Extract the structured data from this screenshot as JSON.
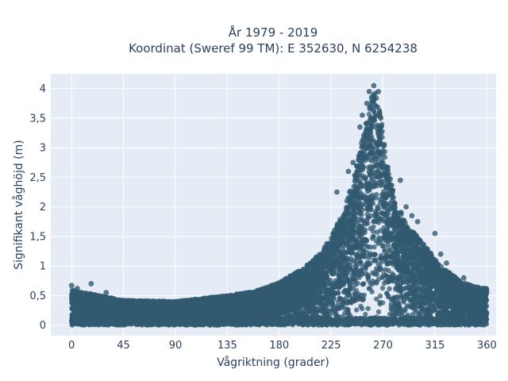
{
  "chart_data": {
    "type": "scatter",
    "title_line1": "År 1979 - 2019",
    "title_line2": "Koordinat (Sweref 99 TM): E 352630, N 6254238",
    "xlabel": "Vågriktning (grader)",
    "ylabel": "Signifikant våghöjd (m)",
    "xlim": [
      -18,
      368
    ],
    "ylim": [
      -0.18,
      4.25
    ],
    "x_ticks": [
      0,
      45,
      90,
      135,
      180,
      225,
      270,
      315,
      360
    ],
    "x_tick_labels": [
      "0",
      "45",
      "90",
      "135",
      "180",
      "225",
      "270",
      "315",
      "360"
    ],
    "y_ticks": [
      0,
      0.5,
      1,
      1.5,
      2,
      2.5,
      3,
      3.5,
      4
    ],
    "y_tick_labels": [
      "0",
      "0,5",
      "1",
      "1,5",
      "2",
      "2,5",
      "3",
      "3,5",
      "4"
    ],
    "grid": true,
    "colors": {
      "marker": "#325a70",
      "background": "#e5ecf6",
      "grid": "#ffffff",
      "text": "#2a3f5f"
    },
    "envelope": {
      "x": [
        0,
        10,
        20,
        45,
        90,
        135,
        160,
        180,
        200,
        215,
        225,
        235,
        245,
        250,
        255,
        260,
        262,
        265,
        268,
        270,
        275,
        280,
        290,
        300,
        310,
        320,
        330,
        340,
        350,
        360
      ],
      "y_max": [
        0.6,
        0.55,
        0.52,
        0.42,
        0.4,
        0.5,
        0.58,
        0.72,
        0.95,
        1.2,
        1.5,
        1.9,
        2.5,
        3.0,
        3.5,
        3.8,
        3.95,
        3.9,
        3.6,
        3.2,
        2.6,
        2.2,
        1.7,
        1.5,
        1.25,
        1.0,
        0.85,
        0.72,
        0.65,
        0.62
      ]
    },
    "outliers": [
      {
        "x": 262,
        "y": 4.05
      },
      {
        "x": 258,
        "y": 3.95
      },
      {
        "x": 266,
        "y": 3.95
      },
      {
        "x": 260,
        "y": 3.85
      },
      {
        "x": 256,
        "y": 3.75
      },
      {
        "x": 264,
        "y": 3.7
      },
      {
        "x": 252,
        "y": 3.55
      },
      {
        "x": 268,
        "y": 3.5
      },
      {
        "x": 250,
        "y": 3.35
      },
      {
        "x": 244,
        "y": 2.75
      },
      {
        "x": 240,
        "y": 2.6
      },
      {
        "x": 285,
        "y": 2.45
      },
      {
        "x": 230,
        "y": 2.25
      },
      {
        "x": 290,
        "y": 2.0
      },
      {
        "x": 295,
        "y": 1.85
      },
      {
        "x": 300,
        "y": 1.75
      },
      {
        "x": 315,
        "y": 1.55
      },
      {
        "x": 320,
        "y": 1.2
      },
      {
        "x": 325,
        "y": 1.05
      },
      {
        "x": 212,
        "y": 1.15
      },
      {
        "x": 340,
        "y": 0.8
      },
      {
        "x": 0,
        "y": 0.67
      },
      {
        "x": 17,
        "y": 0.7
      },
      {
        "x": 5,
        "y": 0.62
      },
      {
        "x": 30,
        "y": 0.55
      }
    ]
  }
}
